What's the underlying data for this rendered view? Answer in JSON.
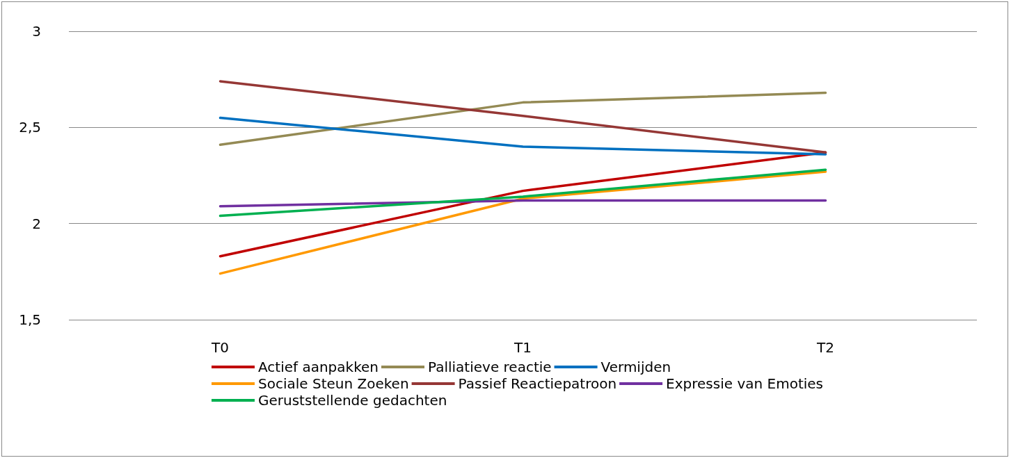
{
  "chart_data": {
    "type": "line",
    "categories": [
      "T0",
      "T1",
      "T2"
    ],
    "series": [
      {
        "name": "Actief aanpakken",
        "color": "#c00000",
        "values": [
          1.83,
          2.17,
          2.37
        ]
      },
      {
        "name": "Palliatieve reactie",
        "color": "#948a54",
        "values": [
          2.41,
          2.63,
          2.68
        ]
      },
      {
        "name": "Vermijden",
        "color": "#0070c0",
        "values": [
          2.55,
          2.4,
          2.36
        ]
      },
      {
        "name": "Sociale Steun Zoeken",
        "color": "#ff9900",
        "values": [
          1.74,
          2.13,
          2.27
        ]
      },
      {
        "name": "Passief Reactiepatroon",
        "color": "#953735",
        "values": [
          2.74,
          2.56,
          2.37
        ]
      },
      {
        "name": "Expressie van Emoties",
        "color": "#7030a0",
        "values": [
          2.09,
          2.12,
          2.12
        ]
      },
      {
        "name": "Geruststellende gedachten",
        "color": "#00b050",
        "values": [
          2.04,
          2.14,
          2.28
        ]
      }
    ],
    "ylim": [
      1.5,
      3
    ],
    "yticks": [
      {
        "value": 1.5,
        "label": "1,5"
      },
      2,
      {
        "value": 2.5,
        "label": "2,5"
      },
      3
    ],
    "grid": "y",
    "legend": "bottom",
    "marker": "none",
    "line_style": "solid"
  }
}
